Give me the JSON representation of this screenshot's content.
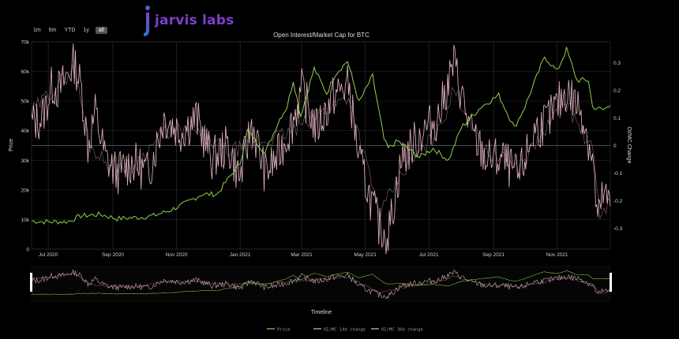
{
  "logo": {
    "text": "jarvis labs",
    "accent": "#8a3fd1",
    "accent2": "#2f6fd8"
  },
  "range_buttons": [
    "1m",
    "6m",
    "YTD",
    "1y",
    "all"
  ],
  "selected_range": "all",
  "colors": {
    "price": "#8fd14f",
    "oi14": "#e8b8c4",
    "oi30": "#e8b8c4",
    "grid": "#2b2b3a",
    "axis": "#cfcfcf",
    "zero": "#4a4a66"
  },
  "chart_data": {
    "type": "line",
    "title": "Open Interest/Market Cap for BTC",
    "xlabel": "Timeline",
    "ylabel": "Price",
    "y2label": "OI/MC Change",
    "x_start": "2020-06-15",
    "x_end": "2021-12-22",
    "ylim": [
      0,
      70000
    ],
    "y2lim": [
      -0.375,
      0.375
    ],
    "x_ticks": [
      {
        "date": "2020-07-01",
        "label": "Jul 2020"
      },
      {
        "date": "2020-09-01",
        "label": "Sep 2020"
      },
      {
        "date": "2020-11-01",
        "label": "Nov 2020"
      },
      {
        "date": "2021-01-01",
        "label": "Jan 2021"
      },
      {
        "date": "2021-03-01",
        "label": "Mar 2021"
      },
      {
        "date": "2021-05-01",
        "label": "May 2021"
      },
      {
        "date": "2021-07-01",
        "label": "Jul 2021"
      },
      {
        "date": "2021-09-01",
        "label": "Sep 2021"
      },
      {
        "date": "2021-11-01",
        "label": "Nov 2021"
      }
    ],
    "y_ticks": [
      {
        "value": 0,
        "label": "0"
      },
      {
        "value": 10000,
        "label": "10k"
      },
      {
        "value": 20000,
        "label": "20k"
      },
      {
        "value": 30000,
        "label": "30k"
      },
      {
        "value": 40000,
        "label": "40k"
      },
      {
        "value": 50000,
        "label": "50k"
      },
      {
        "value": 60000,
        "label": "60k"
      },
      {
        "value": 70000,
        "label": "70k"
      }
    ],
    "y2_ticks": [
      {
        "value": 0.3,
        "label": "0.3"
      },
      {
        "value": 0.2,
        "label": "0.2"
      },
      {
        "value": 0.1,
        "label": "0.1"
      },
      {
        "value": 0,
        "label": "0"
      },
      {
        "value": -0.1,
        "label": "-0.1"
      },
      {
        "value": -0.2,
        "label": "-0.2"
      },
      {
        "value": -0.3,
        "label": "-0.3"
      }
    ],
    "series": [
      {
        "name": "Price",
        "axis": "left",
        "points": [
          [
            "2020-06-15",
            9500
          ],
          [
            "2020-07-01",
            9200
          ],
          [
            "2020-07-20",
            9300
          ],
          [
            "2020-08-01",
            11200
          ],
          [
            "2020-08-20",
            11700
          ],
          [
            "2020-09-05",
            10300
          ],
          [
            "2020-09-25",
            10700
          ],
          [
            "2020-10-10",
            11300
          ],
          [
            "2020-10-25",
            13000
          ],
          [
            "2020-11-10",
            15500
          ],
          [
            "2020-11-25",
            18500
          ],
          [
            "2020-12-10",
            18500
          ],
          [
            "2020-12-20",
            23500
          ],
          [
            "2021-01-01",
            29000
          ],
          [
            "2021-01-08",
            40000
          ],
          [
            "2021-01-15",
            37000
          ],
          [
            "2021-01-25",
            32500
          ],
          [
            "2021-02-08",
            44000
          ],
          [
            "2021-02-15",
            48000
          ],
          [
            "2021-02-21",
            57000
          ],
          [
            "2021-02-28",
            45000
          ],
          [
            "2021-03-13",
            61000
          ],
          [
            "2021-03-25",
            52500
          ],
          [
            "2021-04-02",
            59000
          ],
          [
            "2021-04-14",
            63500
          ],
          [
            "2021-04-25",
            49500
          ],
          [
            "2021-05-08",
            58500
          ],
          [
            "2021-05-19",
            37000
          ],
          [
            "2021-05-23",
            34000
          ],
          [
            "2021-06-01",
            36500
          ],
          [
            "2021-06-22",
            31000
          ],
          [
            "2021-07-05",
            34000
          ],
          [
            "2021-07-20",
            30000
          ],
          [
            "2021-08-01",
            41000
          ],
          [
            "2021-08-20",
            48000
          ],
          [
            "2021-09-06",
            52000
          ],
          [
            "2021-09-21",
            41000
          ],
          [
            "2021-10-01",
            48000
          ],
          [
            "2021-10-20",
            65000
          ],
          [
            "2021-11-01",
            60000
          ],
          [
            "2021-11-10",
            67500
          ],
          [
            "2021-11-20",
            57000
          ],
          [
            "2021-12-01",
            57000
          ],
          [
            "2021-12-05",
            48000
          ],
          [
            "2021-12-15",
            47000
          ],
          [
            "2021-12-22",
            48500
          ]
        ]
      },
      {
        "name": "OI/MC 14d change",
        "axis": "right",
        "points": [
          [
            "2020-06-15",
            0.08
          ],
          [
            "2020-06-25",
            0.1
          ],
          [
            "2020-07-05",
            0.22
          ],
          [
            "2020-07-12",
            0.2
          ],
          [
            "2020-07-20",
            0.26
          ],
          [
            "2020-07-26",
            0.3
          ],
          [
            "2020-08-02",
            0.2
          ],
          [
            "2020-08-08",
            0.0
          ],
          [
            "2020-08-15",
            0.12
          ],
          [
            "2020-08-25",
            -0.05
          ],
          [
            "2020-09-05",
            -0.1
          ],
          [
            "2020-09-20",
            -0.06
          ],
          [
            "2020-10-05",
            -0.1
          ],
          [
            "2020-10-20",
            0.1
          ],
          [
            "2020-11-05",
            0.05
          ],
          [
            "2020-11-20",
            0.1
          ],
          [
            "2020-12-05",
            -0.05
          ],
          [
            "2020-12-20",
            0.0
          ],
          [
            "2021-01-01",
            -0.12
          ],
          [
            "2021-01-12",
            0.08
          ],
          [
            "2021-01-25",
            -0.1
          ],
          [
            "2021-02-05",
            -0.05
          ],
          [
            "2021-02-20",
            0.08
          ],
          [
            "2021-03-01",
            0.2
          ],
          [
            "2021-03-15",
            0.06
          ],
          [
            "2021-04-01",
            0.18
          ],
          [
            "2021-04-15",
            0.22
          ],
          [
            "2021-04-25",
            -0.05
          ],
          [
            "2021-05-05",
            -0.18
          ],
          [
            "2021-05-15",
            -0.3
          ],
          [
            "2021-05-23",
            -0.32
          ],
          [
            "2021-06-05",
            -0.05
          ],
          [
            "2021-06-25",
            0.05
          ],
          [
            "2021-07-10",
            0.1
          ],
          [
            "2021-07-25",
            0.3
          ],
          [
            "2021-08-10",
            0.05
          ],
          [
            "2021-08-25",
            -0.05
          ],
          [
            "2021-09-10",
            -0.05
          ],
          [
            "2021-09-25",
            -0.12
          ],
          [
            "2021-10-10",
            0.05
          ],
          [
            "2021-10-25",
            0.1
          ],
          [
            "2021-11-10",
            0.2
          ],
          [
            "2021-11-25",
            0.12
          ],
          [
            "2021-12-05",
            -0.05
          ],
          [
            "2021-12-10",
            -0.28
          ],
          [
            "2021-12-15",
            -0.18
          ],
          [
            "2021-12-22",
            -0.22
          ]
        ]
      },
      {
        "name": "OI/MC 30d change",
        "axis": "right",
        "points": [
          [
            "2020-06-15",
            0.12
          ],
          [
            "2020-07-05",
            0.2
          ],
          [
            "2020-07-26",
            0.28
          ],
          [
            "2020-08-10",
            0.0
          ],
          [
            "2020-08-25",
            -0.06
          ],
          [
            "2020-09-20",
            -0.08
          ],
          [
            "2020-10-20",
            0.05
          ],
          [
            "2020-11-20",
            0.05
          ],
          [
            "2020-12-20",
            -0.02
          ],
          [
            "2021-01-12",
            0.0
          ],
          [
            "2021-02-20",
            0.05
          ],
          [
            "2021-03-20",
            0.12
          ],
          [
            "2021-04-15",
            0.18
          ],
          [
            "2021-05-15",
            -0.25
          ],
          [
            "2021-06-05",
            -0.1
          ],
          [
            "2021-07-10",
            0.05
          ],
          [
            "2021-07-25",
            0.2
          ],
          [
            "2021-08-25",
            -0.02
          ],
          [
            "2021-09-25",
            -0.08
          ],
          [
            "2021-10-25",
            0.08
          ],
          [
            "2021-11-10",
            0.15
          ],
          [
            "2021-12-05",
            -0.02
          ],
          [
            "2021-12-12",
            -0.25
          ],
          [
            "2021-12-22",
            -0.2
          ]
        ]
      }
    ],
    "legend": {
      "position": "bottom-center",
      "entries": [
        "Price",
        "OI/MC 14d change",
        "OI/MC 30d change"
      ]
    }
  }
}
